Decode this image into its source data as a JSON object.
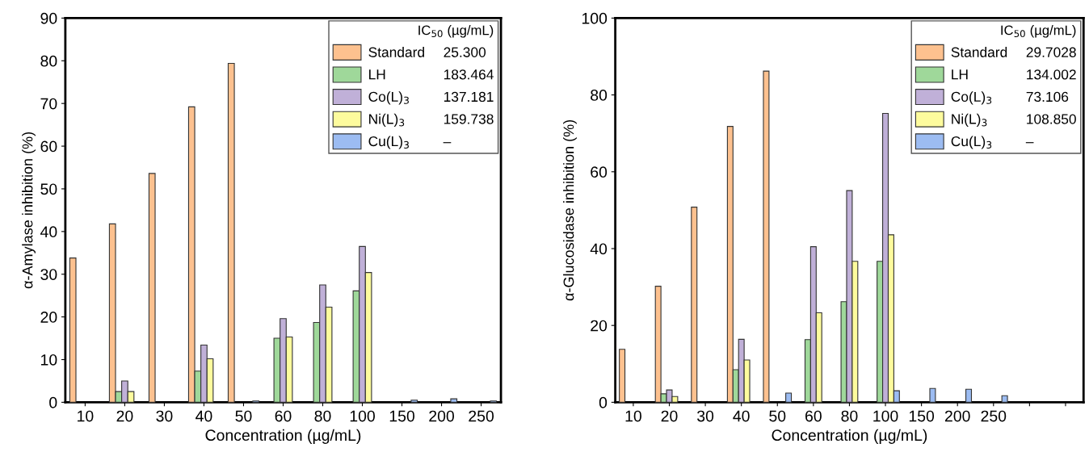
{
  "chart_data": [
    {
      "type": "bar",
      "xlabel": "Concentration (µg/mL)",
      "ylabel": "α-Amylase inhibition (%)",
      "legend_title": "IC$_{50}$ (µg/mL)",
      "categories": [
        "10",
        "20",
        "30",
        "40",
        "50",
        "60",
        "80",
        "100",
        "150",
        "200",
        "250"
      ],
      "series": [
        {
          "name": "Standard",
          "color": "#fdc18f",
          "values": [
            33.8,
            41.8,
            53.6,
            69.2,
            79.4,
            null,
            null,
            null,
            null,
            null,
            null
          ]
        },
        {
          "name": "LH",
          "color": "#9fd89a",
          "values": [
            null,
            2.5,
            null,
            7.3,
            null,
            15.0,
            18.7,
            26.1,
            null,
            null,
            null
          ]
        },
        {
          "name": "Co(L)$_{3}$",
          "color": "#c0b0d8",
          "values": [
            null,
            5.0,
            null,
            13.4,
            null,
            19.6,
            27.5,
            36.5,
            null,
            null,
            null
          ]
        },
        {
          "name": "Ni(L)$_{3}$",
          "color": "#fdfb9d",
          "values": [
            null,
            2.5,
            null,
            10.2,
            null,
            15.3,
            22.3,
            30.4,
            null,
            null,
            null
          ]
        },
        {
          "name": "Cu(L)$_{3}$",
          "color": "#9cbcf2",
          "values": [
            null,
            null,
            null,
            null,
            0.3,
            null,
            null,
            null,
            0.5,
            0.8,
            0.3
          ]
        }
      ],
      "annotations": [
        "25.300",
        "183.464",
        "137.181",
        "159.738",
        "–"
      ],
      "ylim": [
        0,
        90
      ],
      "yticks": [
        0,
        10,
        20,
        30,
        40,
        50,
        60,
        70,
        80,
        90
      ],
      "legend": "top right"
    },
    {
      "type": "bar",
      "xlabel": "Concentration (µg/mL)",
      "ylabel": "α-Glucosidase inhibition (%)",
      "legend_title": "IC$_{50}$ (µg/mL)",
      "categories": [
        "10",
        "20",
        "30",
        "40",
        "50",
        "60",
        "80",
        "100",
        "150",
        "200",
        "250",
        null,
        null
      ],
      "series": [
        {
          "name": "Standard",
          "color": "#fdc18f",
          "values": [
            13.8,
            30.2,
            50.8,
            71.8,
            86.2,
            null,
            null,
            null,
            null,
            null,
            null,
            null,
            null
          ]
        },
        {
          "name": "LH",
          "color": "#9fd89a",
          "values": [
            null,
            2.2,
            null,
            8.5,
            null,
            16.3,
            26.2,
            36.7,
            null,
            null,
            null,
            null,
            null
          ]
        },
        {
          "name": "Co(L)$_{3}$",
          "color": "#c0b0d8",
          "values": [
            null,
            3.2,
            null,
            16.4,
            null,
            40.5,
            55.1,
            75.2,
            null,
            null,
            null,
            null,
            null
          ]
        },
        {
          "name": "Ni(L)$_{3}$",
          "color": "#fdfb9d",
          "values": [
            null,
            1.5,
            null,
            11.0,
            null,
            23.3,
            36.7,
            43.6,
            null,
            null,
            null,
            null,
            null
          ]
        },
        {
          "name": "Cu(L)$_{3}$",
          "color": "#9cbcf2",
          "values": [
            null,
            null,
            null,
            null,
            2.4,
            null,
            null,
            3.0,
            3.6,
            3.4,
            1.7,
            null,
            null
          ]
        }
      ],
      "annotations": [
        "29.7028",
        "134.002",
        "73.106",
        "108.850",
        "–"
      ],
      "ylim": [
        0,
        100
      ],
      "yticks": [
        0,
        20,
        40,
        60,
        80,
        100
      ],
      "legend": "top right"
    }
  ]
}
